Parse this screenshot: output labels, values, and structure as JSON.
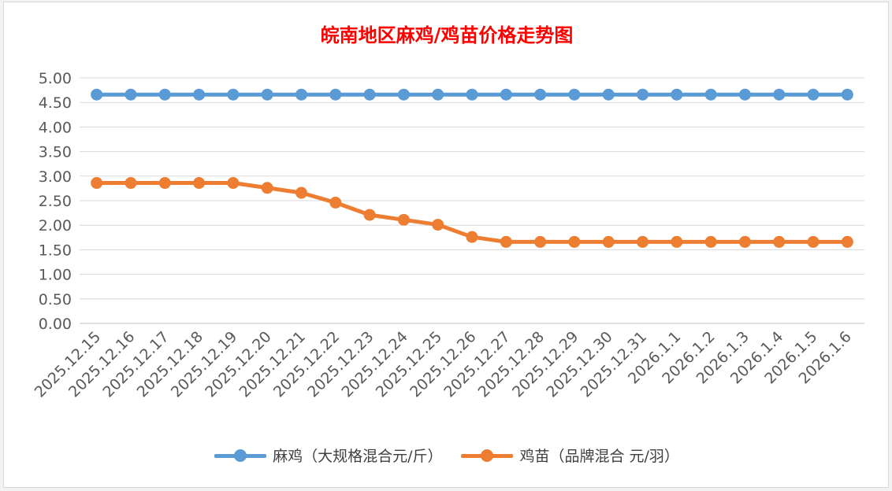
{
  "chart_data": {
    "type": "line",
    "title": "皖南地区麻鸡/鸡苗价格走势图",
    "title_color": "#ff0000",
    "xlabel": "",
    "ylabel": "",
    "ylim": [
      0,
      5
    ],
    "yticks": [
      "0.00",
      "0.50",
      "1.00",
      "1.50",
      "2.00",
      "2.50",
      "3.00",
      "3.50",
      "4.00",
      "4.50",
      "5.00"
    ],
    "grid": true,
    "legend_position": "bottom",
    "categories": [
      "2025.12.15",
      "2025.12.16",
      "2025.12.17",
      "2025.12.18",
      "2025.12.19",
      "2025.12.20",
      "2025.12.21",
      "2025.12.22",
      "2025.12.23",
      "2025.12.24",
      "2025.12.25",
      "2025.12.26",
      "2025.12.27",
      "2025.12.28",
      "2025.12.29",
      "2025.12.30",
      "2025.12.31",
      "2026.1.1",
      "2026.1.2",
      "2026.1.3",
      "2026.1.4",
      "2026.1.5",
      "2026.1.6"
    ],
    "series": [
      {
        "name": "麻鸡（大规格混合元/斤）",
        "color": "#5b9bd5",
        "values": [
          4.66,
          4.66,
          4.66,
          4.66,
          4.66,
          4.66,
          4.66,
          4.66,
          4.66,
          4.66,
          4.66,
          4.66,
          4.66,
          4.66,
          4.66,
          4.66,
          4.66,
          4.66,
          4.66,
          4.66,
          4.66,
          4.66,
          4.66
        ]
      },
      {
        "name": "鸡苗（品牌混合 元/羽）",
        "color": "#ed7d31",
        "values": [
          2.86,
          2.86,
          2.86,
          2.86,
          2.86,
          2.76,
          2.66,
          2.46,
          2.21,
          2.11,
          2.01,
          1.76,
          1.66,
          1.66,
          1.66,
          1.66,
          1.66,
          1.66,
          1.66,
          1.66,
          1.66,
          1.66,
          1.66
        ]
      }
    ]
  }
}
